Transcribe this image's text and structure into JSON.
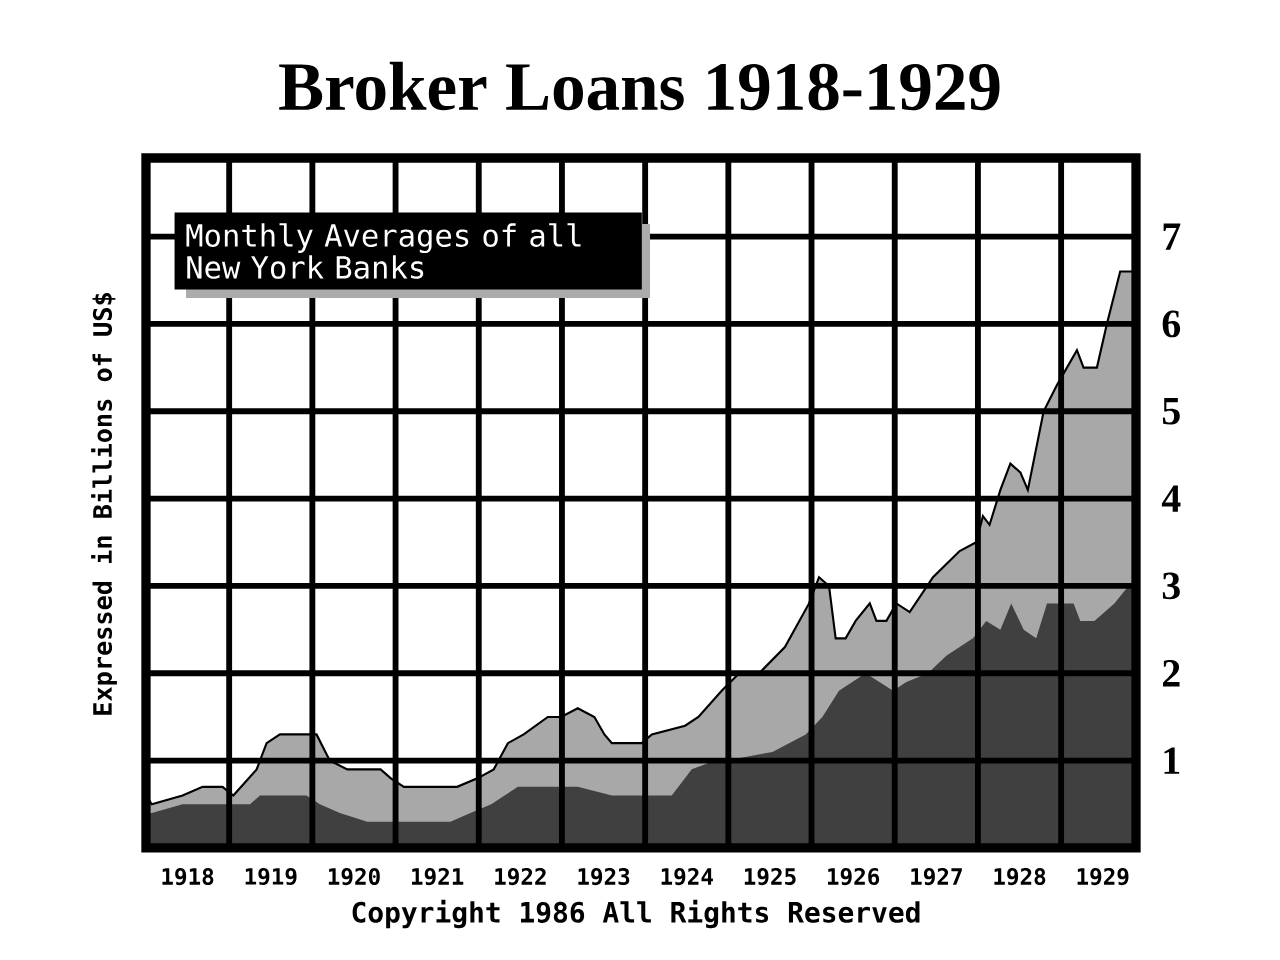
{
  "chart_data": {
    "type": "area",
    "title": "Broker Loans 1918-1929",
    "ylabel": "Expressed in Billions of US$",
    "annotations": [
      "Monthly Averages of all New York Banks",
      "Copyright 1986 All Rights Reserved"
    ],
    "series": [
      {
        "color": "#a8a8a8",
        "x": [
          1918.0,
          1918.07,
          1918.44,
          1918.68,
          1918.92,
          1919.05,
          1919.33,
          1919.45,
          1919.61,
          1919.85,
          1920.05,
          1920.21,
          1920.42,
          1920.61,
          1920.82,
          1920.94,
          1921.1,
          1921.34,
          1921.58,
          1921.74,
          1921.99,
          1922.18,
          1922.35,
          1922.54,
          1922.83,
          1922.99,
          1923.19,
          1923.39,
          1923.51,
          1923.6,
          1923.96,
          1924.08,
          1924.48,
          1924.64,
          1924.92,
          1925.13,
          1925.37,
          1925.68,
          1925.97,
          1926.09,
          1926.21,
          1926.29,
          1926.41,
          1926.53,
          1926.7,
          1926.78,
          1926.9,
          1927.02,
          1927.18,
          1927.46,
          1927.78,
          1927.98,
          1928.06,
          1928.14,
          1928.27,
          1928.39,
          1928.51,
          1928.6,
          1928.79,
          1928.95,
          1929.07,
          1929.19,
          1929.27,
          1929.43,
          1929.55,
          1929.71,
          1929.81,
          1929.9
        ],
        "values": [
          0.6,
          0.5,
          0.6,
          0.7,
          0.7,
          0.6,
          0.9,
          1.2,
          1.3,
          1.3,
          1.3,
          1.0,
          0.9,
          0.9,
          0.9,
          0.8,
          0.7,
          0.7,
          0.7,
          0.7,
          0.8,
          0.9,
          1.2,
          1.3,
          1.5,
          1.5,
          1.6,
          1.5,
          1.3,
          1.2,
          1.2,
          1.3,
          1.4,
          1.5,
          1.8,
          2.0,
          2.0,
          2.3,
          2.8,
          3.1,
          3.0,
          2.4,
          2.4,
          2.6,
          2.8,
          2.6,
          2.6,
          2.8,
          2.7,
          3.1,
          3.4,
          3.5,
          3.8,
          3.7,
          4.1,
          4.4,
          4.3,
          4.1,
          5.0,
          5.3,
          5.5,
          5.7,
          5.5,
          5.5,
          6.0,
          6.6,
          6.6,
          6.6
        ]
      },
      {
        "color": "#404040",
        "x": [
          1918.0,
          1918.07,
          1918.44,
          1918.85,
          1919.05,
          1919.25,
          1919.37,
          1919.61,
          1919.93,
          1920.09,
          1920.33,
          1920.66,
          1920.94,
          1921.2,
          1921.66,
          1921.9,
          1922.15,
          1922.47,
          1922.79,
          1922.99,
          1923.19,
          1923.6,
          1923.96,
          1924.32,
          1924.56,
          1924.84,
          1924.96,
          1925.53,
          1925.93,
          1926.13,
          1926.33,
          1926.65,
          1926.98,
          1927.14,
          1927.4,
          1927.62,
          1927.94,
          1928.1,
          1928.27,
          1928.4,
          1928.55,
          1928.7,
          1928.83,
          1929.0,
          1929.15,
          1929.23,
          1929.4,
          1929.64,
          1929.81,
          1929.9
        ],
        "values": [
          0.4,
          0.4,
          0.5,
          0.5,
          0.5,
          0.5,
          0.6,
          0.6,
          0.6,
          0.5,
          0.4,
          0.3,
          0.3,
          0.3,
          0.3,
          0.4,
          0.5,
          0.7,
          0.7,
          0.7,
          0.7,
          0.6,
          0.6,
          0.6,
          0.9,
          1.0,
          1.0,
          1.1,
          1.3,
          1.5,
          1.8,
          2.0,
          1.8,
          1.9,
          2.0,
          2.2,
          2.4,
          2.6,
          2.5,
          2.8,
          2.5,
          2.4,
          2.8,
          2.8,
          2.8,
          2.6,
          2.6,
          2.8,
          3.0,
          3.0
        ]
      }
    ],
    "xlim": [
      1918,
      1929.9
    ],
    "xticks": [
      {
        "value": 1918.5,
        "label": "1918"
      },
      {
        "value": 1919.5,
        "label": "1919"
      },
      {
        "value": 1920.5,
        "label": "1920"
      },
      {
        "value": 1921.5,
        "label": "1921"
      },
      {
        "value": 1922.5,
        "label": "1922"
      },
      {
        "value": 1923.5,
        "label": "1923"
      },
      {
        "value": 1924.5,
        "label": "1924"
      },
      {
        "value": 1925.5,
        "label": "1925"
      },
      {
        "value": 1926.5,
        "label": "1926"
      },
      {
        "value": 1927.5,
        "label": "1927"
      },
      {
        "value": 1928.5,
        "label": "1928"
      },
      {
        "value": 1929.5,
        "label": "1929"
      },
      {
        "value": 1919,
        "label": null
      },
      {
        "value": 1920,
        "label": null
      },
      {
        "value": 1921,
        "label": null
      },
      {
        "value": 1922,
        "label": null
      },
      {
        "value": 1923,
        "label": null
      },
      {
        "value": 1924,
        "label": null
      },
      {
        "value": 1925,
        "label": null
      },
      {
        "value": 1926,
        "label": null
      },
      {
        "value": 1927,
        "label": null
      },
      {
        "value": 1928,
        "label": null
      },
      {
        "value": 1929,
        "label": null
      }
    ],
    "ylim": [
      0,
      7.9
    ],
    "yticks": [
      1,
      2,
      3,
      4,
      5,
      6,
      7
    ],
    "grid": true
  }
}
